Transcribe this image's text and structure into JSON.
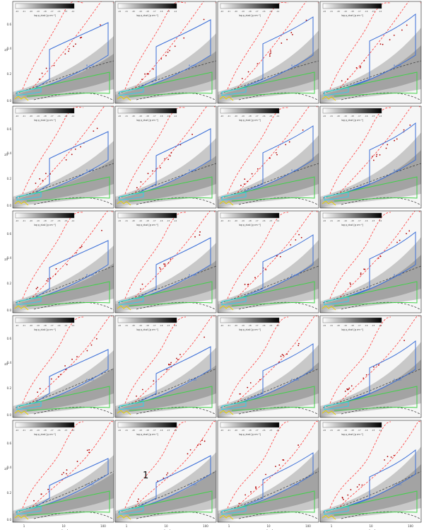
{
  "figure": {
    "rows": 5,
    "cols": 4,
    "axis_labels": {
      "x": "r [au]",
      "y": "z/r"
    },
    "x_ticks": [
      "1",
      "10",
      "100"
    ],
    "y_ticks": [
      "0.6",
      "0.4",
      "0.2",
      "0.0"
    ],
    "colorbar_ticks": [
      "-22",
      "-21",
      "-20",
      "-19",
      "-18",
      "-17",
      "-16",
      "-15",
      "-14"
    ],
    "colorbar_label": "log ρ_dust [g cm⁻³]",
    "contour_label": "R_H₂O",
    "overlay_text": "1",
    "colors": {
      "red_dashed": "#ff3a3a",
      "blue": "#3b6fd8",
      "green": "#42d14a",
      "cyan": "#33d0e8",
      "yellow": "#e8d000",
      "black_dashed": "#444444"
    }
  }
}
